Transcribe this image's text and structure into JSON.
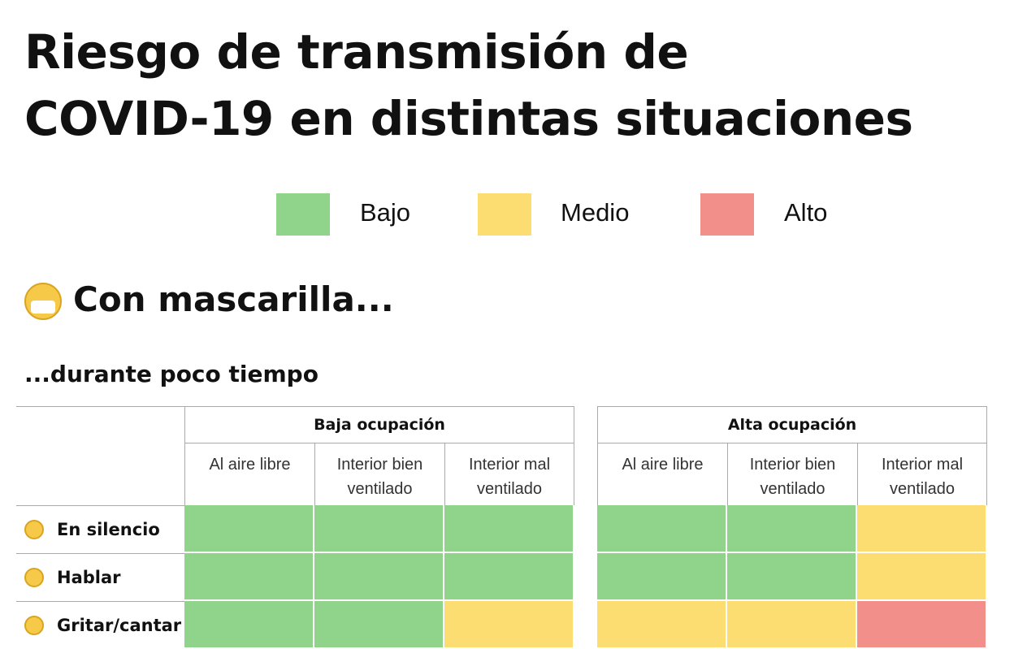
{
  "header": {
    "title_lines": [
      "Riesgo de transmisión de",
      "COVID-19 en distintas situaciones"
    ]
  },
  "legend": [
    {
      "label": "Bajo",
      "color": "#8fd48a"
    },
    {
      "label": "Medio",
      "color": "#fbdd72"
    },
    {
      "label": "Alto",
      "color": "#f28f8a"
    }
  ],
  "section": {
    "title": "Con mascarilla...",
    "subtitle": "...durante poco tiempo"
  },
  "table": {
    "groups": [
      {
        "label": "Baja ocupación",
        "columns": [
          "Al aire libre",
          "Interior bien ventilado",
          "Interior mal ventilado"
        ]
      },
      {
        "label": "Alta ocupación",
        "columns": [
          "Al aire libre",
          "Interior bien ventilado",
          "Interior mal ventilado"
        ]
      }
    ],
    "rows": [
      {
        "label": "En silencio",
        "levels": [
          0,
          0,
          0,
          0,
          0,
          1
        ]
      },
      {
        "label": "Hablar",
        "levels": [
          0,
          0,
          0,
          0,
          0,
          1
        ]
      },
      {
        "label": "Gritar/cantar",
        "levels": [
          0,
          0,
          1,
          1,
          1,
          2
        ]
      }
    ]
  }
}
